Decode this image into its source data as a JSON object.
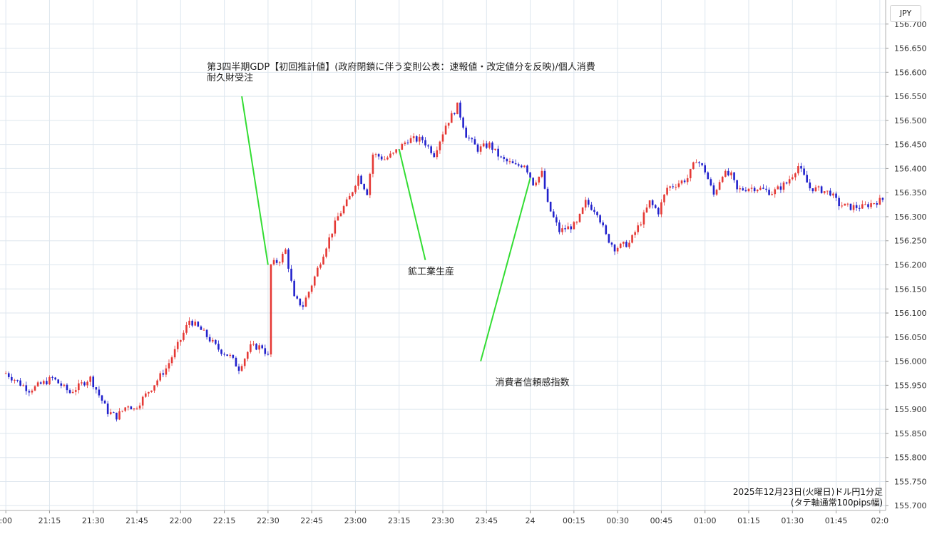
{
  "currency": "JPY",
  "caption_line1": "2025年12月23日(火曜日)ドル円1分足",
  "caption_line2": "(タテ軸通常100pips幅)",
  "chart_data": {
    "type": "candlestick",
    "y_ticks": [
      "155.700",
      "155.750",
      "155.800",
      "155.850",
      "155.900",
      "155.950",
      "156.000",
      "156.050",
      "156.100",
      "156.150",
      "156.200",
      "156.250",
      "156.300",
      "156.350",
      "156.400",
      "156.450",
      "156.500",
      "156.550",
      "156.600",
      "156.650",
      "156.700"
    ],
    "x_ticks": [
      ":00",
      "21:15",
      "21:30",
      "21:45",
      "22:00",
      "22:15",
      "22:30",
      "22:45",
      "23:00",
      "23:15",
      "23:30",
      "23:45",
      "24",
      "00:15",
      "00:30",
      "00:45",
      "01:00",
      "01:15",
      "01:30",
      "01:45",
      "02:0"
    ],
    "ylim": [
      155.69,
      156.75
    ],
    "x_minutes_range": [
      -2,
      302
    ],
    "grid": true,
    "up_color": "#e53935",
    "down_color": "#2222cc",
    "annotation_line_color": "#33dd33",
    "annotations": [
      {
        "text": "第3四半期GDP【初回推計値】(政府閉鎖に伴う変則公表：速報値・改定値分を反映)/個人消費",
        "text2": "耐久財受注",
        "text_x_min": 69,
        "text_price": 156.605,
        "target_min": 90,
        "target_price": 156.2,
        "line_start_price": 156.55
      },
      {
        "text": "鉱工業生産",
        "text2": "",
        "text_x_min": 138,
        "text_price": 156.18,
        "target_min": 135,
        "target_price": 156.44,
        "line_start_price": 156.21
      },
      {
        "text": "消費者信頼感指数",
        "text2": "",
        "text_x_min": 168,
        "text_price": 155.95,
        "target_min": 180,
        "target_price": 156.38,
        "line_start_price": 156.0
      }
    ],
    "waypoints": [
      [
        0,
        155.975
      ],
      [
        8,
        155.94
      ],
      [
        13,
        155.955
      ],
      [
        16,
        155.965
      ],
      [
        22,
        155.935
      ],
      [
        29,
        155.965
      ],
      [
        32,
        155.93
      ],
      [
        35,
        155.895
      ],
      [
        38,
        155.885
      ],
      [
        42,
        155.91
      ],
      [
        44,
        155.9
      ],
      [
        50,
        155.945
      ],
      [
        55,
        155.985
      ],
      [
        60,
        156.045
      ],
      [
        63,
        156.085
      ],
      [
        67,
        156.065
      ],
      [
        73,
        156.025
      ],
      [
        77,
        156.01
      ],
      [
        80,
        155.985
      ],
      [
        84,
        156.03
      ],
      [
        88,
        156.03
      ],
      [
        90,
        156.01
      ],
      [
        91,
        156.2
      ],
      [
        94,
        156.21
      ],
      [
        96,
        156.23
      ],
      [
        99,
        156.13
      ],
      [
        102,
        156.115
      ],
      [
        106,
        156.175
      ],
      [
        110,
        156.24
      ],
      [
        114,
        156.3
      ],
      [
        118,
        156.34
      ],
      [
        121,
        156.385
      ],
      [
        124,
        156.35
      ],
      [
        126,
        156.43
      ],
      [
        130,
        156.42
      ],
      [
        133,
        156.43
      ],
      [
        138,
        156.46
      ],
      [
        143,
        156.46
      ],
      [
        147,
        156.43
      ],
      [
        151,
        156.49
      ],
      [
        155,
        156.53
      ],
      [
        158,
        156.47
      ],
      [
        162,
        156.44
      ],
      [
        166,
        156.45
      ],
      [
        170,
        156.42
      ],
      [
        175,
        156.405
      ],
      [
        178,
        156.41
      ],
      [
        181,
        156.37
      ],
      [
        184,
        156.39
      ],
      [
        186,
        156.325
      ],
      [
        190,
        156.27
      ],
      [
        196,
        156.285
      ],
      [
        199,
        156.33
      ],
      [
        203,
        156.31
      ],
      [
        206,
        156.26
      ],
      [
        209,
        156.235
      ],
      [
        214,
        156.245
      ],
      [
        218,
        156.29
      ],
      [
        221,
        156.33
      ],
      [
        224,
        156.31
      ],
      [
        227,
        156.36
      ],
      [
        231,
        156.37
      ],
      [
        234,
        156.38
      ],
      [
        237,
        156.42
      ],
      [
        240,
        156.395
      ],
      [
        243,
        156.345
      ],
      [
        246,
        156.39
      ],
      [
        249,
        156.385
      ],
      [
        251,
        156.355
      ],
      [
        255,
        156.36
      ],
      [
        258,
        156.36
      ],
      [
        263,
        156.35
      ],
      [
        268,
        156.37
      ],
      [
        272,
        156.405
      ],
      [
        276,
        156.36
      ],
      [
        280,
        156.355
      ],
      [
        283,
        156.35
      ],
      [
        286,
        156.325
      ],
      [
        290,
        156.32
      ],
      [
        294,
        156.32
      ],
      [
        298,
        156.33
      ],
      [
        301,
        156.335
      ]
    ]
  }
}
